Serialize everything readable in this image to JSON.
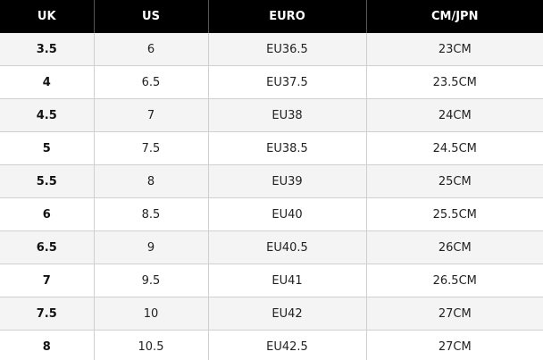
{
  "table": {
    "headers": [
      "UK",
      "US",
      "EURO",
      "CM/JPN"
    ],
    "rows": [
      [
        "3.5",
        "6",
        "EU36.5",
        "23CM"
      ],
      [
        "4",
        "6.5",
        "EU37.5",
        "23.5CM"
      ],
      [
        "4.5",
        "7",
        "EU38",
        "24CM"
      ],
      [
        "5",
        "7.5",
        "EU38.5",
        "24.5CM"
      ],
      [
        "5.5",
        "8",
        "EU39",
        "25CM"
      ],
      [
        "6",
        "8.5",
        "EU40",
        "25.5CM"
      ],
      [
        "6.5",
        "9",
        "EU40.5",
        "26CM"
      ],
      [
        "7",
        "9.5",
        "EU41",
        "26.5CM"
      ],
      [
        "7.5",
        "10",
        "EU42",
        "27CM"
      ],
      [
        "8",
        "10.5",
        "EU42.5",
        "27CM"
      ]
    ]
  },
  "colors": {
    "header_background": "#000000",
    "header_text": "#ffffff",
    "stripe_background": "#f4f4f4",
    "border": "#d0d0d0"
  }
}
